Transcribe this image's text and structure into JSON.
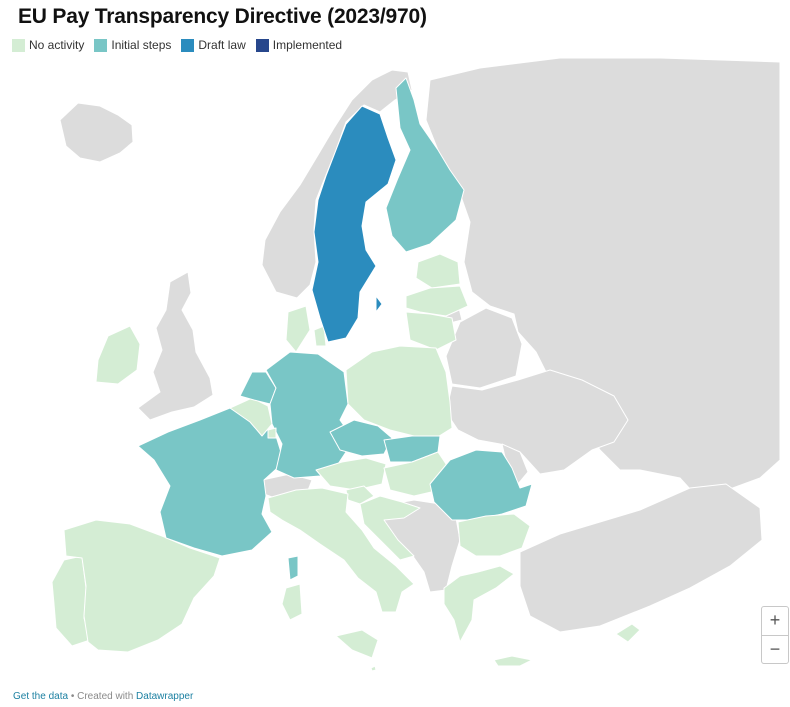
{
  "title": "EU Pay Transparency Directive (2023/970)",
  "legend": [
    {
      "key": "no_activity",
      "label": "No activity",
      "color": "#d4edd4"
    },
    {
      "key": "initial",
      "label": "Initial steps",
      "color": "#79c6c6"
    },
    {
      "key": "draft",
      "label": "Draft law",
      "color": "#2b8cbe"
    },
    {
      "key": "implemented",
      "label": "Implemented",
      "color": "#27478c"
    }
  ],
  "non_eu_color": "#dcdcdc",
  "countries": {
    "Portugal": "no_activity",
    "Spain": "no_activity",
    "France": "initial",
    "Ireland": "no_activity",
    "Belgium": "no_activity",
    "Netherlands": "initial",
    "Luxembourg": "no_activity",
    "Germany": "initial",
    "Denmark": "no_activity",
    "Sweden": "draft",
    "Finland": "initial",
    "Estonia": "no_activity",
    "Latvia": "no_activity",
    "Lithuania": "no_activity",
    "Poland": "no_activity",
    "Czechia": "initial",
    "Slovakia": "initial",
    "Austria": "no_activity",
    "Hungary": "no_activity",
    "Slovenia": "no_activity",
    "Croatia": "no_activity",
    "Italy": "no_activity",
    "Romania": "initial",
    "Bulgaria": "no_activity",
    "Greece": "no_activity",
    "Cyprus": "no_activity",
    "Malta": "no_activity"
  },
  "zoom": {
    "in_label": "+",
    "out_label": "−"
  },
  "footer": {
    "link_label": "Get the data",
    "separator": "•",
    "created_with": "Created with",
    "brand": "Datawrapper"
  }
}
